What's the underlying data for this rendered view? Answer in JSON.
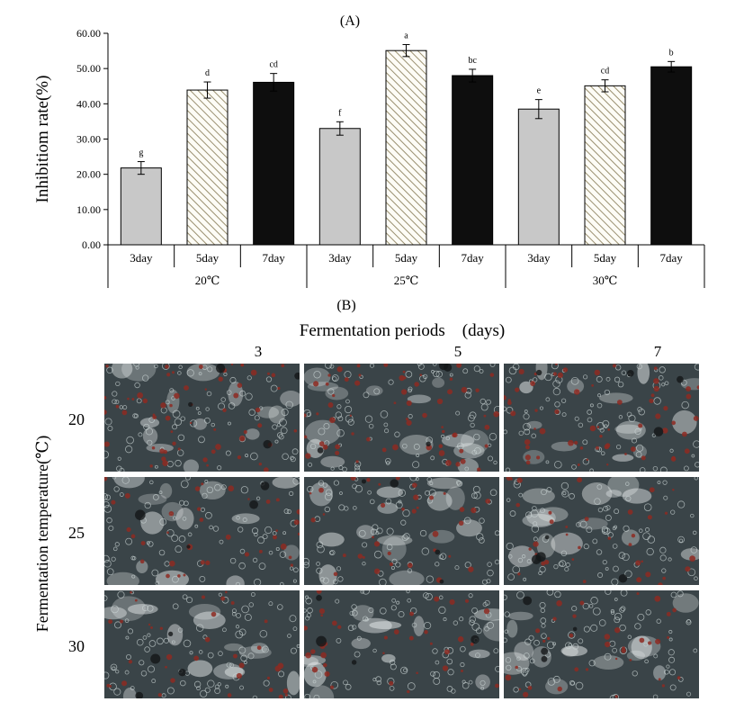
{
  "panel_a_label": "(A)",
  "panel_b_label": "(B)",
  "chart_data": {
    "type": "bar",
    "title": "",
    "ylabel": "Inhibitiom rate(%)",
    "xlabel": "",
    "ylim": [
      0,
      60
    ],
    "yticks": [
      "0.00",
      "10.00",
      "20.00",
      "30.00",
      "40.00",
      "50.00",
      "60.00"
    ],
    "grid": false,
    "groups": [
      {
        "label": "20℃",
        "bars": [
          {
            "category": "3day",
            "value": 21.8,
            "error": 1.8,
            "letter": "g",
            "style": "gray"
          },
          {
            "category": "5day",
            "value": 43.9,
            "error": 2.3,
            "letter": "d",
            "style": "hatch"
          },
          {
            "category": "7day",
            "value": 46.1,
            "error": 2.5,
            "letter": "cd",
            "style": "black"
          }
        ]
      },
      {
        "label": "25℃",
        "bars": [
          {
            "category": "3day",
            "value": 33.0,
            "error": 1.9,
            "letter": "f",
            "style": "gray"
          },
          {
            "category": "5day",
            "value": 55.1,
            "error": 1.7,
            "letter": "a",
            "style": "hatch"
          },
          {
            "category": "7day",
            "value": 48.0,
            "error": 1.8,
            "letter": "bc",
            "style": "black"
          }
        ]
      },
      {
        "label": "30℃",
        "bars": [
          {
            "category": "3day",
            "value": 38.5,
            "error": 2.7,
            "letter": "e",
            "style": "gray"
          },
          {
            "category": "5day",
            "value": 45.1,
            "error": 1.7,
            "letter": "cd",
            "style": "hatch"
          },
          {
            "category": "7day",
            "value": 50.5,
            "error": 1.5,
            "letter": "b",
            "style": "black"
          }
        ]
      }
    ],
    "colors": {
      "gray": "#c8c8c8",
      "hatch_stroke": "#9a9070",
      "hatch_bg": "#fdfcf6",
      "black": "#0e0e0e"
    }
  },
  "micrographs": {
    "column_title": "Fermentation periods　(days)",
    "columns": [
      "3",
      "5",
      "7"
    ],
    "row_title": "Fermentation temperature(℃)",
    "rows": [
      "20",
      "25",
      "30"
    ],
    "colors": {
      "background": "#3a4448",
      "stain": "#8e2a22",
      "cell": "#c9d3d3",
      "bright": "#eef2f2",
      "dark": "#141618"
    }
  }
}
